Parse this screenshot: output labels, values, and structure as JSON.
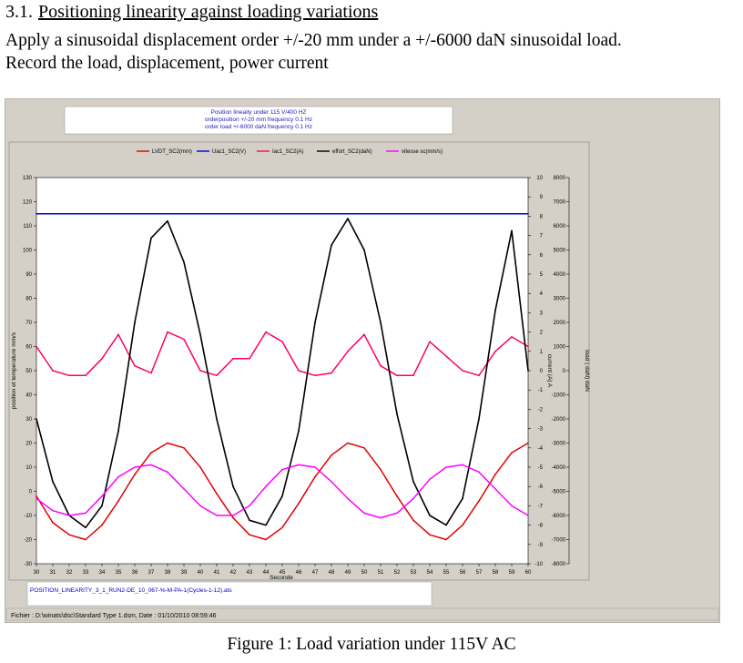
{
  "document": {
    "section_number": "3.1.",
    "section_title": "Positioning linearity against loading variations",
    "paragraph_lines": [
      "Apply a sinusoidal displacement order +/-20 mm under a +/-6000 daN sinusoidal load.",
      "Record the load, displacement, power current"
    ],
    "figure_caption": "Figure 1: Load variation under 115V AC"
  },
  "app": {
    "header_lines": [
      "Position lineaity under 115 V/400 HZ",
      "orderposition +/-20 mm frequency 0.1 Hz",
      "order load +/-6000 daN frequency 0.1 Hz"
    ],
    "file_label": "POSITION_LINEARITY_3_1_RUN2-DE_10_067-%-M-PA-1(Cycles-1-12).ats",
    "status_text": "Fichier : D:\\winats\\dsc\\Standard Type 1.dsm, Date : 01/10/2010 08:59:46",
    "colors": {
      "window_bg": "#d4d0c8",
      "plot_bg": "#ffffff",
      "file_label": "#0000cc"
    }
  },
  "chart_data": {
    "type": "line",
    "xlabel": "Seconde",
    "ylabel_left": "position et temperature mm/s",
    "ylabel_right1": "current (A) A",
    "ylabel_right2": "load ( daN) daN",
    "xlim": [
      30,
      60
    ],
    "ylim_left": [
      -30,
      130
    ],
    "ylim_right1": [
      -10,
      10
    ],
    "ylim_right2": [
      -8000,
      8000
    ],
    "x_ticks": [
      30,
      31,
      32,
      33,
      34,
      35,
      36,
      37,
      38,
      39,
      40,
      41,
      42,
      43,
      44,
      45,
      46,
      47,
      48,
      49,
      50,
      51,
      52,
      53,
      54,
      55,
      56,
      57,
      58,
      59,
      60
    ],
    "y_left_ticks": [
      -30,
      -20,
      -10,
      0,
      10,
      20,
      30,
      40,
      50,
      60,
      70,
      80,
      90,
      100,
      110,
      120,
      130
    ],
    "y_right1_ticks": [
      -10,
      -9,
      -8,
      -7,
      -6,
      -5,
      -4,
      -3,
      -2,
      -1,
      0,
      1,
      2,
      3,
      4,
      5,
      6,
      7,
      8,
      9,
      10
    ],
    "y_right2_ticks": [
      -8000,
      -7000,
      -6000,
      -5000,
      -4000,
      -3000,
      -2000,
      -1000,
      0,
      1000,
      2000,
      3000,
      4000,
      5000,
      6000,
      7000,
      8000
    ],
    "grid": false,
    "legend_position": "top",
    "series": [
      {
        "name": "LVDT_SC2(mm)",
        "axis": "left",
        "color": "#e00000",
        "x": [
          30,
          31,
          32,
          33,
          34,
          35,
          36,
          37,
          38,
          39,
          40,
          41,
          42,
          43,
          44,
          45,
          46,
          47,
          48,
          49,
          50,
          51,
          52,
          53,
          54,
          55,
          56,
          57,
          58,
          59,
          60
        ],
        "values": [
          -2,
          -13,
          -18,
          -20,
          -14,
          -4,
          7,
          16,
          20,
          18,
          10,
          -1,
          -11,
          -18,
          -20,
          -15,
          -5,
          6,
          15,
          20,
          18,
          9,
          -2,
          -12,
          -18,
          -20,
          -14,
          -4,
          7,
          16,
          20
        ]
      },
      {
        "name": "Uac1_SC2(V)",
        "axis": "left",
        "color": "#0000cc",
        "x": [
          30,
          60
        ],
        "values": [
          115,
          115
        ]
      },
      {
        "name": "Iac1_SC2(A)",
        "axis": "left",
        "color": "#ff0066",
        "x": [
          30,
          31,
          32,
          33,
          34,
          35,
          36,
          37,
          38,
          39,
          40,
          41,
          42,
          43,
          44,
          45,
          46,
          47,
          48,
          49,
          50,
          51,
          52,
          53,
          54,
          55,
          56,
          57,
          58,
          59,
          60
        ],
        "values": [
          60,
          50,
          48,
          48,
          55,
          65,
          52,
          49,
          66,
          63,
          50,
          48,
          55,
          55,
          66,
          62,
          50,
          48,
          49,
          58,
          65,
          52,
          48,
          48,
          62,
          56,
          50,
          48,
          58,
          64,
          60
        ]
      },
      {
        "name": "effort_SC2(daN)",
        "axis": "right2",
        "color": "#000000",
        "x": [
          30,
          31,
          32,
          33,
          34,
          35,
          36,
          37,
          38,
          39,
          40,
          41,
          42,
          43,
          44,
          45,
          46,
          47,
          48,
          49,
          50,
          51,
          52,
          53,
          54,
          55,
          56,
          57,
          58,
          59,
          60
        ],
        "values": [
          -2000,
          -4600,
          -6000,
          -6500,
          -5600,
          -2500,
          2000,
          5500,
          6200,
          4500,
          1500,
          -2000,
          -4800,
          -6200,
          -6400,
          -5200,
          -2500,
          2000,
          5200,
          6300,
          5000,
          2000,
          -1800,
          -4600,
          -6000,
          -6400,
          -5300,
          -2000,
          2500,
          5800,
          0
        ]
      },
      {
        "name": "vitesse sc(mm/s)",
        "axis": "left",
        "color": "#ff00ff",
        "x": [
          30,
          31,
          32,
          33,
          34,
          35,
          36,
          37,
          38,
          39,
          40,
          41,
          42,
          43,
          44,
          45,
          46,
          47,
          48,
          49,
          50,
          51,
          52,
          53,
          54,
          55,
          56,
          57,
          58,
          59,
          60
        ],
        "values": [
          -3,
          -8,
          -10,
          -9,
          -2,
          6,
          10,
          11,
          8,
          1,
          -6,
          -10,
          -10,
          -6,
          2,
          9,
          11,
          10,
          4,
          -3,
          -9,
          -11,
          -9,
          -3,
          5,
          10,
          11,
          8,
          1,
          -6,
          -10
        ]
      }
    ]
  }
}
